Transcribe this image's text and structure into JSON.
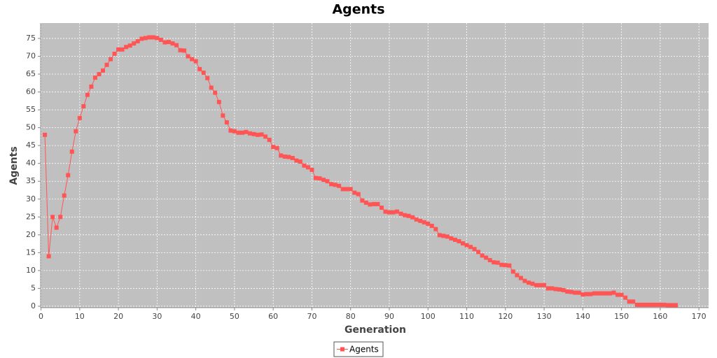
{
  "chart_data": {
    "type": "line",
    "title": "Agents",
    "x_label": "Generation",
    "y_label": "Agents",
    "x": [
      1,
      2,
      3,
      4,
      5,
      6,
      7,
      8,
      9,
      10,
      11,
      12,
      13,
      14,
      15,
      16,
      17,
      18,
      19,
      20,
      21,
      22,
      23,
      24,
      25,
      26,
      27,
      28,
      29,
      30,
      31,
      32,
      33,
      34,
      35,
      36,
      37,
      38,
      39,
      40,
      41,
      42,
      43,
      44,
      45,
      46,
      47,
      48,
      49,
      50,
      51,
      52,
      53,
      54,
      55,
      56,
      57,
      58,
      59,
      60,
      61,
      62,
      63,
      64,
      65,
      66,
      67,
      68,
      69,
      70,
      71,
      72,
      73,
      74,
      75,
      76,
      77,
      78,
      79,
      80,
      81,
      82,
      83,
      84,
      85,
      86,
      87,
      88,
      89,
      90,
      91,
      92,
      93,
      94,
      95,
      96,
      97,
      98,
      99,
      100,
      101,
      102,
      103,
      104,
      105,
      106,
      107,
      108,
      109,
      110,
      111,
      112,
      113,
      114,
      115,
      116,
      117,
      118,
      119,
      120,
      121,
      122,
      123,
      124,
      125,
      126,
      127,
      128,
      129,
      130,
      131,
      132,
      133,
      134,
      135,
      136,
      137,
      138,
      139,
      140,
      141,
      142,
      143,
      144,
      145,
      146,
      147,
      148,
      149,
      150,
      151,
      152,
      153,
      154,
      155,
      156,
      157,
      158,
      159,
      160,
      161,
      162,
      163,
      164
    ],
    "series": [
      {
        "name": "Agents",
        "color": "#ff5555",
        "values": [
          48,
          14,
          25,
          22,
          25,
          31,
          36.7,
          43.3,
          49,
          52.7,
          56,
          59.2,
          61.5,
          64,
          65,
          66,
          67.6,
          69.2,
          70.7,
          71.9,
          71.9,
          72.6,
          73,
          73.6,
          74.2,
          74.9,
          75.1,
          75.3,
          75.3,
          75.1,
          74.6,
          73.9,
          74,
          73.6,
          73.1,
          71.7,
          71.6,
          70,
          69.2,
          68.6,
          66.4,
          65.4,
          63.9,
          61.2,
          59.8,
          57.2,
          53.4,
          51.5,
          49.2,
          49,
          48.6,
          48.6,
          48.8,
          48.4,
          48.2,
          48,
          48.1,
          47.5,
          46.6,
          44.6,
          44.3,
          42.2,
          41.9,
          41.8,
          41.5,
          40.8,
          40.5,
          39.4,
          38.9,
          38.2,
          35.9,
          35.8,
          35.4,
          35,
          34.2,
          34,
          33.7,
          32.8,
          32.8,
          32.8,
          31.8,
          31.4,
          29.6,
          29,
          28.5,
          28.6,
          28.6,
          27.6,
          26.5,
          26.3,
          26.3,
          26.5,
          25.9,
          25.5,
          25.3,
          24.9,
          24.3,
          23.9,
          23.5,
          23.1,
          22.5,
          21.6,
          19.9,
          19.7,
          19.5,
          19,
          18.6,
          18.2,
          17.6,
          17.1,
          16.6,
          16,
          15.2,
          14.2,
          13.6,
          12.9,
          12.3,
          12.2,
          11.6,
          11.5,
          11.4,
          9.7,
          8.7,
          7.9,
          7.1,
          6.6,
          6.3,
          5.9,
          5.9,
          5.9,
          5,
          5,
          4.8,
          4.7,
          4.5,
          4.1,
          4,
          3.8,
          3.8,
          3.3,
          3.4,
          3.4,
          3.6,
          3.6,
          3.6,
          3.6,
          3.6,
          3.8,
          3.2,
          3.2,
          2.4,
          1.3,
          1.3,
          0.4,
          0.4,
          0.4,
          0.4,
          0.4,
          0.4,
          0.4,
          0.4,
          0.3,
          0.3,
          0.3
        ]
      }
    ],
    "xlim": [
      -0.1,
      172.5
    ],
    "ylim": [
      -0.4,
      79.3
    ],
    "xticks": [
      0,
      10,
      20,
      30,
      40,
      50,
      60,
      70,
      80,
      90,
      100,
      110,
      120,
      130,
      140,
      150,
      160,
      170
    ],
    "yticks": [
      0,
      5,
      10,
      15,
      20,
      25,
      30,
      35,
      40,
      45,
      50,
      55,
      60,
      65,
      70,
      75
    ],
    "grid": true,
    "plot_background": "#c0c0c0",
    "legend": "bottom"
  }
}
